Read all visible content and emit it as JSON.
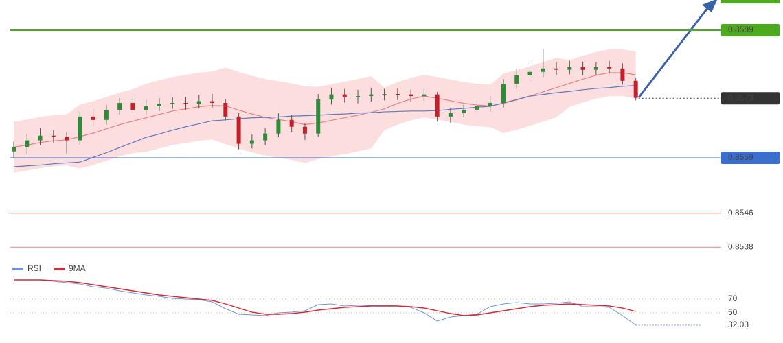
{
  "chart_data": [
    {
      "type": "candlestick",
      "open": [
        0.85605,
        0.85615,
        0.85631,
        0.85642,
        0.85639,
        0.85631,
        0.85687,
        0.85679,
        0.85703,
        0.85719,
        0.85703,
        0.85711,
        0.85716,
        0.85719,
        0.85716,
        0.85723,
        0.85719,
        0.85687,
        0.85623,
        0.85631,
        0.85647,
        0.85679,
        0.85663,
        0.85647,
        0.85727,
        0.85739,
        0.85732,
        0.85735,
        0.85739,
        0.8574,
        0.85739,
        0.85735,
        0.85739,
        0.85687,
        0.85695,
        0.85703,
        0.85711,
        0.85719,
        0.85764,
        0.85784,
        0.85792,
        0.858,
        0.85797,
        0.85803,
        0.85797,
        0.85803,
        0.858,
        0.85771
      ],
      "high": [
        0.85628,
        0.85645,
        0.8566,
        0.85655,
        0.8565,
        0.857,
        0.85705,
        0.85715,
        0.8573,
        0.85735,
        0.85728,
        0.8573,
        0.85732,
        0.85733,
        0.85738,
        0.8574,
        0.85727,
        0.85695,
        0.85645,
        0.8566,
        0.85695,
        0.8569,
        0.85672,
        0.8574,
        0.85755,
        0.85752,
        0.8575,
        0.85755,
        0.85752,
        0.85753,
        0.8575,
        0.85752,
        0.85745,
        0.85708,
        0.85715,
        0.85725,
        0.85735,
        0.85775,
        0.858,
        0.85808,
        0.85845,
        0.85815,
        0.85818,
        0.85816,
        0.85815,
        0.85818,
        0.85812,
        0.85778
      ],
      "low": [
        0.8559,
        0.85598,
        0.8562,
        0.85626,
        0.856,
        0.8562,
        0.85665,
        0.85668,
        0.85692,
        0.85695,
        0.8569,
        0.857,
        0.85705,
        0.85703,
        0.85706,
        0.85708,
        0.85678,
        0.8561,
        0.85612,
        0.8562,
        0.85638,
        0.8565,
        0.85632,
        0.8564,
        0.85715,
        0.8572,
        0.85718,
        0.85722,
        0.85725,
        0.85726,
        0.85722,
        0.85724,
        0.85675,
        0.85672,
        0.85685,
        0.85692,
        0.85698,
        0.85708,
        0.85752,
        0.8577,
        0.8578,
        0.85785,
        0.85786,
        0.85784,
        0.85785,
        0.85788,
        0.85762,
        0.85725
      ],
      "close": [
        0.85615,
        0.85631,
        0.85642,
        0.85639,
        0.85631,
        0.85687,
        0.85679,
        0.85703,
        0.85719,
        0.85703,
        0.85711,
        0.85716,
        0.85719,
        0.85716,
        0.85723,
        0.85719,
        0.85687,
        0.85623,
        0.85631,
        0.85647,
        0.85679,
        0.85663,
        0.85647,
        0.85727,
        0.85739,
        0.85732,
        0.85735,
        0.85739,
        0.8574,
        0.85739,
        0.85735,
        0.85739,
        0.85687,
        0.85695,
        0.85703,
        0.85711,
        0.85719,
        0.85764,
        0.85784,
        0.85792,
        0.858,
        0.85797,
        0.85803,
        0.85797,
        0.85803,
        0.858,
        0.85771,
        0.85731
      ],
      "colors": {
        "up": "#2e8b3a",
        "down": "#c4202b"
      },
      "band": {
        "color": "#fbd3d3",
        "upper": [
          0.85675,
          0.8568,
          0.85686,
          0.8569,
          0.85692,
          0.85715,
          0.85723,
          0.85733,
          0.85743,
          0.85751,
          0.85764,
          0.85772,
          0.8578,
          0.85785,
          0.8579,
          0.85793,
          0.85802,
          0.85792,
          0.85783,
          0.85775,
          0.8577,
          0.85765,
          0.85758,
          0.85757,
          0.85763,
          0.85769,
          0.85775,
          0.85782,
          0.85755,
          0.85768,
          0.85778,
          0.85785,
          0.8578,
          0.85774,
          0.85768,
          0.85764,
          0.85762,
          0.85788,
          0.85796,
          0.85805,
          0.85815,
          0.85825,
          0.8582,
          0.8583,
          0.85839,
          0.85845,
          0.85845,
          0.8584
        ],
        "lower": [
          0.85555,
          0.8556,
          0.85566,
          0.8557,
          0.85572,
          0.85565,
          0.85573,
          0.85583,
          0.85593,
          0.85601,
          0.85604,
          0.85612,
          0.8562,
          0.85625,
          0.8563,
          0.85633,
          0.85622,
          0.85612,
          0.85603,
          0.85595,
          0.8559,
          0.85585,
          0.85578,
          0.85587,
          0.85593,
          0.85599,
          0.85605,
          0.85612,
          0.85655,
          0.85668,
          0.85678,
          0.85685,
          0.8568,
          0.85674,
          0.85668,
          0.85664,
          0.85662,
          0.85648,
          0.85656,
          0.85665,
          0.85675,
          0.85685,
          0.8571,
          0.8572,
          0.85729,
          0.85735,
          0.85735,
          0.8573
        ]
      },
      "overlays": [
        {
          "color": "#f08080",
          "values": [
            0.85615,
            0.8562,
            0.85626,
            0.8563,
            0.85632,
            0.8564,
            0.85648,
            0.85658,
            0.85668,
            0.85676,
            0.85684,
            0.85692,
            0.857,
            0.85705,
            0.8571,
            0.85713,
            0.85712,
            0.85702,
            0.85693,
            0.85685,
            0.8568,
            0.85675,
            0.85668,
            0.85672,
            0.85678,
            0.85684,
            0.8569,
            0.85697,
            0.85705,
            0.85718,
            0.85728,
            0.85735,
            0.8573,
            0.85724,
            0.85718,
            0.85714,
            0.85712,
            0.85718,
            0.85726,
            0.85735,
            0.85745,
            0.85755,
            0.85765,
            0.85775,
            0.85784,
            0.8579,
            0.8579,
            0.85785
          ]
        },
        {
          "color": "#5b7bc4",
          "values": [
            0.85569,
            0.85571,
            0.85573,
            0.85576,
            0.85578,
            0.8558,
            0.85591,
            0.85602,
            0.85614,
            0.85626,
            0.85638,
            0.85646,
            0.85655,
            0.85663,
            0.8567,
            0.85677,
            0.85679,
            0.85682,
            0.85684,
            0.85685,
            0.85686,
            0.85688,
            0.85689,
            0.8569,
            0.85692,
            0.85693,
            0.85695,
            0.85696,
            0.85698,
            0.85699,
            0.857,
            0.857,
            0.85701,
            0.85704,
            0.85706,
            0.85709,
            0.85711,
            0.85719,
            0.85727,
            0.85735,
            0.85739,
            0.85743,
            0.85746,
            0.8575,
            0.85753,
            0.85755,
            0.85758,
            0.8576
          ]
        }
      ],
      "levels": [
        {
          "value": 0.8589,
          "color": "#4caa1f",
          "box": true,
          "style": "solid"
        },
        {
          "value": 0.8573,
          "color": "#333333",
          "box": true,
          "style": "dotted"
        },
        {
          "value": 0.8559,
          "color": "#3a6fd1",
          "box": true,
          "style": "solid"
        },
        {
          "value": 0.8546,
          "color": "#e0262c",
          "box": false,
          "style": "solid"
        },
        {
          "value": 0.8538,
          "color": "#f08080",
          "box": false,
          "style": "solid"
        }
      ],
      "ylim": [
        0.8535,
        0.8596
      ]
    },
    {
      "type": "line",
      "series": [
        {
          "name": "RSI",
          "color": "#6c95e6",
          "values": [
            98,
            98,
            98,
            96,
            94,
            92,
            88,
            86,
            82,
            79,
            76,
            74,
            71,
            70,
            69,
            66,
            56,
            48,
            47,
            46,
            50,
            51,
            53,
            62,
            63,
            60,
            61,
            61,
            61,
            60,
            58,
            50,
            38,
            44,
            46,
            48,
            59,
            63,
            65,
            63,
            63,
            64,
            66,
            59,
            59,
            58,
            46,
            32.03
          ]
        },
        {
          "name": "9MA",
          "color": "#e0262c",
          "values": [
            98,
            98,
            98,
            97,
            96,
            94,
            91,
            88,
            85,
            82,
            79,
            76,
            74,
            72,
            70,
            68,
            63,
            57,
            51,
            48,
            48,
            49,
            51,
            54,
            56,
            58,
            59,
            60,
            60,
            60,
            59,
            57,
            53,
            49,
            46,
            47,
            50,
            53,
            56,
            59,
            61,
            62,
            63,
            62,
            61,
            60,
            57,
            52
          ]
        }
      ],
      "ylim": [
        6,
        100
      ],
      "yticks": [
        70,
        50
      ],
      "grid": true
    }
  ]
}
